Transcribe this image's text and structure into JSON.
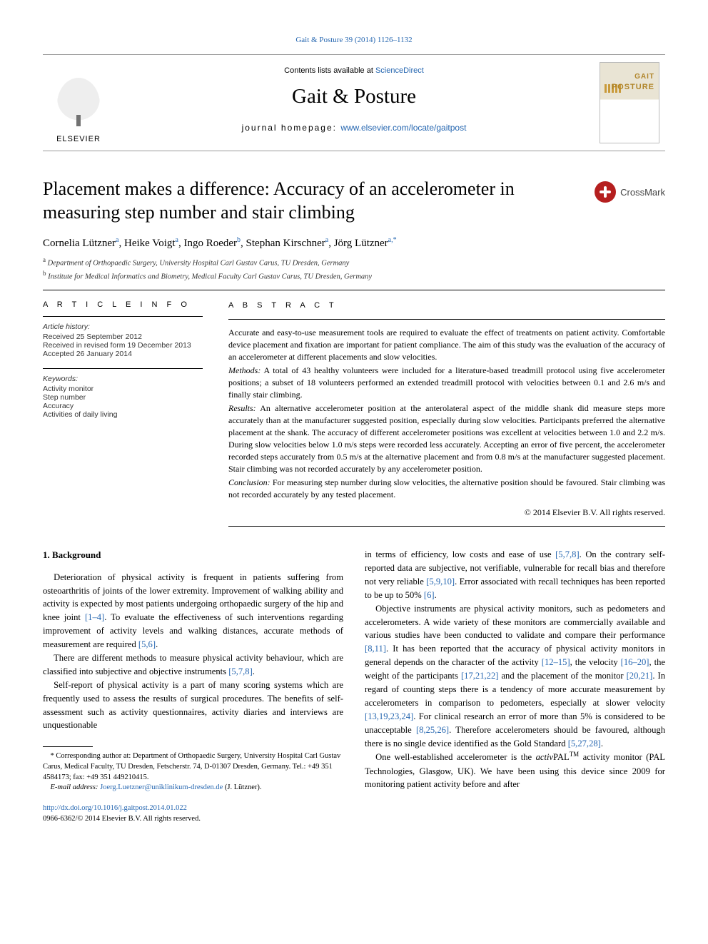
{
  "running_head": "Gait & Posture 39 (2014) 1126–1132",
  "masthead": {
    "contents_prefix": "Contents lists available at ",
    "contents_link": "ScienceDirect",
    "journal_name": "Gait & Posture",
    "homepage_prefix": "journal homepage: ",
    "homepage_url": "www.elsevier.com/locate/gaitpost",
    "publisher_word": "ELSEVIER",
    "cover_top": "GAIT",
    "cover_bottom": "POSTURE"
  },
  "crossmark_label": "CrossMark",
  "title": "Placement makes a difference: Accuracy of an accelerometer in measuring step number and stair climbing",
  "authors_html_parts": {
    "a1": "Cornelia Lützner",
    "s1": "a",
    "a2": "Heike Voigt",
    "s2": "a",
    "a3": "Ingo Roeder",
    "s3": "b",
    "a4": "Stephan Kirschner",
    "s4": "a",
    "a5": "Jörg Lützner",
    "s5": "a,",
    "s5star": "*"
  },
  "affiliations": {
    "a": "Department of Orthopaedic Surgery, University Hospital Carl Gustav Carus, TU Dresden, Germany",
    "b": "Institute for Medical Informatics and Biometry, Medical Faculty Carl Gustav Carus, TU Dresden, Germany"
  },
  "info": {
    "heading": "A R T I C L E   I N F O",
    "history_label": "Article history:",
    "received": "Received 25 September 2012",
    "revised": "Received in revised form 19 December 2013",
    "accepted": "Accepted 26 January 2014",
    "keywords_label": "Keywords:",
    "kw1": "Activity monitor",
    "kw2": "Step number",
    "kw3": "Accuracy",
    "kw4": "Activities of daily living"
  },
  "abstract": {
    "heading": "A B S T R A C T",
    "p1": "Accurate and easy-to-use measurement tools are required to evaluate the effect of treatments on patient activity. Comfortable device placement and fixation are important for patient compliance. The aim of this study was the evaluation of the accuracy of an accelerometer at different placements and slow velocities.",
    "methods_label": "Methods:",
    "methods": " A total of 43 healthy volunteers were included for a literature-based treadmill protocol using five accelerometer positions; a subset of 18 volunteers performed an extended treadmill protocol with velocities between 0.1 and 2.6 m/s and finally stair climbing.",
    "results_label": "Results:",
    "results": " An alternative accelerometer position at the anterolateral aspect of the middle shank did measure steps more accurately than at the manufacturer suggested position, especially during slow velocities. Participants preferred the alternative placement at the shank. The accuracy of different accelerometer positions was excellent at velocities between 1.0 and 2.2 m/s. During slow velocities below 1.0 m/s steps were recorded less accurately. Accepting an error of five percent, the accelerometer recorded steps accurately from 0.5 m/s at the alternative placement and from 0.8 m/s at the manufacturer suggested placement. Stair climbing was not recorded accurately by any accelerometer position.",
    "conclusion_label": "Conclusion:",
    "conclusion": " For measuring step number during slow velocities, the alternative position should be favoured. Stair climbing was not recorded accurately by any tested placement.",
    "copyright": "© 2014 Elsevier B.V. All rights reserved."
  },
  "body": {
    "h1": "1. Background",
    "p1a": "Deterioration of physical activity is frequent in patients suffering from osteoarthritis of joints of the lower extremity. Improvement of walking ability and activity is expected by most patients undergoing orthopaedic surgery of the hip and knee joint ",
    "p1r1": "[1–4]",
    "p1b": ". To evaluate the effectiveness of such interventions regarding improvement of activity levels and walking distances, accurate methods of measurement are required ",
    "p1r2": "[5,6]",
    "p1c": ".",
    "p2a": "There are different methods to measure physical activity behaviour, which are classified into subjective and objective instruments ",
    "p2r1": "[5,7,8]",
    "p2b": ".",
    "p3a": "Self-report of physical activity is a part of many scoring systems which are frequently used to assess the results of surgical procedures. The benefits of self-assessment such as activity questionnaires, activity diaries and interviews are unquestionable",
    "p4a": "in terms of efficiency, low costs and ease of use ",
    "p4r1": "[5,7,8]",
    "p4b": ". On the contrary self-reported data are subjective, not verifiable, vulnerable for recall bias and therefore not very reliable ",
    "p4r2": "[5,9,10]",
    "p4c": ". Error associated with recall techniques has been reported to be up to 50% ",
    "p4r3": "[6]",
    "p4d": ".",
    "p5a": "Objective instruments are physical activity monitors, such as pedometers and accelerometers. A wide variety of these monitors are commercially available and various studies have been conducted to validate and compare their performance ",
    "p5r1": "[8,11]",
    "p5b": ". It has been reported that the accuracy of physical activity monitors in general depends on the character of the activity ",
    "p5r2": "[12–15]",
    "p5c": ", the velocity ",
    "p5r3": "[16–20]",
    "p5d": ", the weight of the participants ",
    "p5r4": "[17,21,22]",
    "p5e": " and the placement of the monitor ",
    "p5r5": "[20,21]",
    "p5f": ". In regard of counting steps there is a tendency of more accurate measurement by accelerometers in comparison to pedometers, especially at slower velocity ",
    "p5r6": "[13,19,23,24]",
    "p5g": ". For clinical research an error of more than 5% is considered to be unacceptable ",
    "p5r7": "[8,25,26]",
    "p5h": ". Therefore accelerometers should be favoured, although there is no single device identified as the Gold Standard ",
    "p5r8": "[5,27,28]",
    "p5i": ".",
    "p6a": "One well-established accelerometer is the ",
    "p6i": "activ",
    "p6b": "PAL",
    "p6tm": "TM",
    "p6c": " activity monitor (PAL Technologies, Glasgow, UK). We have been using this device since 2009 for monitoring patient activity before and after"
  },
  "footnotes": {
    "corr": "* Corresponding author at: Department of Orthopaedic Surgery, University Hospital Carl Gustav Carus, Medical Faculty, TU Dresden, Fetscherstr. 74, D-01307 Dresden, Germany. Tel.: +49 351 4584173; fax: +49 351 449210415.",
    "email_label": "E-mail address: ",
    "email": "Joerg.Luetzner@uniklinikum-dresden.de",
    "email_tail": " (J. Lützner)."
  },
  "doi": {
    "url": "http://dx.doi.org/10.1016/j.gaitpost.2014.01.022",
    "line2": "0966-6362/© 2014 Elsevier B.V. All rights reserved."
  },
  "colors": {
    "link": "#2566b0",
    "text": "#000000",
    "rule": "#000000",
    "badge": "#b51f1f"
  }
}
